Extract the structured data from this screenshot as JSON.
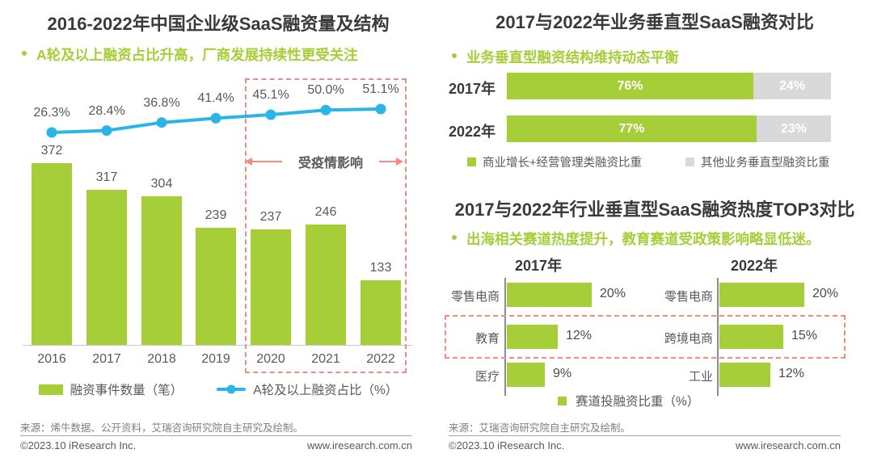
{
  "colors": {
    "green": "#a6ce39",
    "blue": "#2ab5e6",
    "gray": "#d9d9d9",
    "salmon": "#f28b80"
  },
  "chart_data": [
    {
      "type": "bar",
      "combo": "bar+line",
      "title": "2016-2022年中国企业级SaaS融资量及结构",
      "subtitle": "A轮及以上融资占比升高，厂商发展持续性更受关注",
      "categories": [
        "2016",
        "2017",
        "2018",
        "2019",
        "2020",
        "2021",
        "2022"
      ],
      "series": [
        {
          "name": "融资事件数量（笔）",
          "type": "bar",
          "color": "#a6ce39",
          "values": [
            372,
            317,
            304,
            239,
            237,
            246,
            133
          ],
          "labels": [
            "372",
            "317",
            "304",
            "239",
            "237",
            "246",
            "133"
          ]
        },
        {
          "name": "A轮及以上融资占比（%）",
          "type": "line",
          "color": "#2ab5e6",
          "values": [
            26.3,
            28.4,
            36.8,
            41.4,
            45.1,
            50.0,
            51.1
          ],
          "labels": [
            "26.3%",
            "28.4%",
            "36.8%",
            "41.4%",
            "45.1%",
            "50.0%",
            "51.1%"
          ]
        }
      ],
      "annotation": {
        "label": "受疫情影响",
        "range": [
          "2020",
          "2022"
        ]
      },
      "legend_position": "bottom"
    },
    {
      "type": "bar",
      "combo": "stacked-horizontal",
      "title": "2017与2022年业务垂直型SaaS融资对比",
      "subtitle": "业务垂直型融资结构维持动态平衡",
      "categories": [
        "2017年",
        "2022年"
      ],
      "xlim": [
        0,
        100
      ],
      "series": [
        {
          "name": "商业增长+经营管理类融资比重",
          "color": "#a6ce39",
          "values": [
            76,
            77
          ],
          "labels": [
            "76%",
            "77%"
          ]
        },
        {
          "name": "其他业务垂直型融资比重",
          "color": "#d9d9d9",
          "values": [
            24,
            23
          ],
          "labels": [
            "24%",
            "23%"
          ]
        }
      ]
    },
    {
      "type": "bar",
      "combo": "grouped-horizontal",
      "title": "2017与2022年行业垂直型SaaS融资热度TOP3对比",
      "subtitle": "出海相关赛道热度提升，教育赛道受政策影响略显低迷。",
      "legend": "赛道投融资比重（%）",
      "highlighted_row_index": 1,
      "groups": [
        {
          "year": "2017年",
          "items": [
            {
              "label": "零售电商",
              "value": 20,
              "value_label": "20%"
            },
            {
              "label": "教育",
              "value": 12,
              "value_label": "12%"
            },
            {
              "label": "医疗",
              "value": 9,
              "value_label": "9%"
            }
          ]
        },
        {
          "year": "2022年",
          "items": [
            {
              "label": "零售电商",
              "value": 20,
              "value_label": "20%"
            },
            {
              "label": "跨境电商",
              "value": 15,
              "value_label": "15%"
            },
            {
              "label": "工业",
              "value": 12,
              "value_label": "12%"
            }
          ]
        }
      ]
    }
  ],
  "footer": {
    "left": {
      "source": "来源：烯牛数据、公开资料，艾瑞咨询研究院自主研究及绘制。",
      "copyright": "©2023.10 iResearch Inc.",
      "website": "www.iresearch.com.cn"
    },
    "right": {
      "source": "来源：艾瑞咨询研究院自主研究及绘制。",
      "copyright": "©2023.10 iResearch Inc.",
      "website": "www.iresearch.com.cn"
    }
  }
}
